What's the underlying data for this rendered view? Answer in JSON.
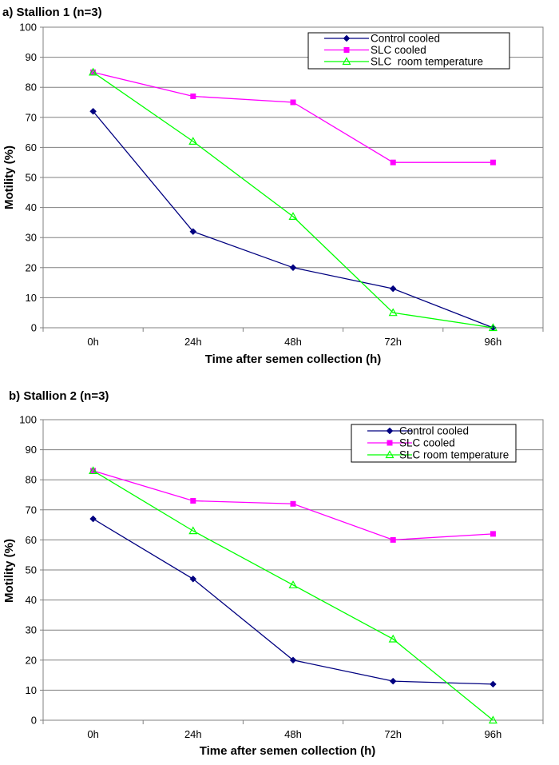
{
  "chart_data": [
    {
      "type": "line",
      "title": "a) Stallion 1 (n=3)",
      "xlabel": "Time after semen collection (h)",
      "ylabel": "Motility (%)",
      "categories": [
        "0h",
        "24h",
        "48h",
        "72h",
        "96h"
      ],
      "ylim": [
        0,
        100
      ],
      "yticks": [
        "0",
        "10",
        "20",
        "30",
        "40",
        "50",
        "60",
        "70",
        "80",
        "90",
        "100"
      ],
      "grid": true,
      "legend_position": "top-right",
      "series": [
        {
          "name": "Control cooled",
          "color": "#000080",
          "marker": "diamond",
          "values": [
            72,
            32,
            20,
            13,
            0
          ]
        },
        {
          "name": "SLC cooled",
          "color": "#ff00ff",
          "marker": "square",
          "values": [
            85,
            77,
            75,
            55,
            55
          ]
        },
        {
          "name": "SLC  room temperature",
          "color": "#00ff00",
          "marker": "triangle",
          "values": [
            85,
            62,
            37,
            5,
            0
          ]
        }
      ]
    },
    {
      "type": "line",
      "title": "b) Stallion 2 (n=3)",
      "xlabel": "Time after semen collection (h)",
      "ylabel": "Motility (%)",
      "categories": [
        "0h",
        "24h",
        "48h",
        "72h",
        "96h"
      ],
      "ylim": [
        0,
        100
      ],
      "yticks": [
        "0",
        "10",
        "20",
        "30",
        "40",
        "50",
        "60",
        "70",
        "80",
        "90",
        "100"
      ],
      "grid": true,
      "legend_position": "top-right",
      "series": [
        {
          "name": "Control cooled",
          "color": "#000080",
          "marker": "diamond",
          "values": [
            67,
            47,
            20,
            13,
            12
          ]
        },
        {
          "name": "SLC cooled",
          "color": "#ff00ff",
          "marker": "square",
          "values": [
            83,
            73,
            72,
            60,
            62
          ]
        },
        {
          "name": "SLC room temperature",
          "color": "#00ff00",
          "marker": "triangle",
          "values": [
            83,
            63,
            45,
            27,
            0
          ]
        }
      ]
    }
  ]
}
